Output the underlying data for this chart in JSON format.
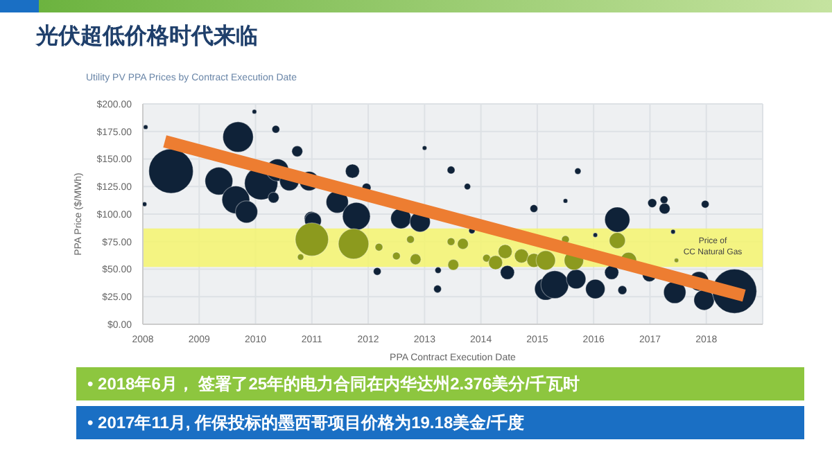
{
  "chart_data": {
    "type": "bubble",
    "title": "光伏超低价格时代来临",
    "subtitle": "Utility PV PPA Prices by Contract Execution Date",
    "xlabel": "PPA Contract Execution Date",
    "ylabel": "PPA Price ($/MWh)",
    "xlim": [
      2008,
      2019
    ],
    "xticks": [
      2008,
      2009,
      2010,
      2011,
      2012,
      2013,
      2014,
      2015,
      2016,
      2017,
      2018
    ],
    "ylim": [
      0,
      200
    ],
    "yticks": [
      {
        "value": 0,
        "label": "$0.00"
      },
      {
        "value": 25,
        "label": "$25.00"
      },
      {
        "value": 50,
        "label": "$50.00"
      },
      {
        "value": 75,
        "label": "$75.00"
      },
      {
        "value": 100,
        "label": "$100.00"
      },
      {
        "value": 125,
        "label": "$125.00"
      },
      {
        "value": 150,
        "label": "$150.00"
      },
      {
        "value": 175,
        "label": "$175.00"
      },
      {
        "value": 200,
        "label": "$200.00"
      }
    ],
    "grid": true,
    "bands": [
      {
        "axis": "y",
        "from": 52,
        "to": 87,
        "label": "Price of CC Natural Gas",
        "color": "#f5f56e"
      }
    ],
    "series": [
      {
        "type": "bubble",
        "color": "#0f2238",
        "x": [
          2008.5,
          2009.69,
          2009.35,
          2009.65,
          2009.84,
          2008.05,
          2008.03,
          2009.98,
          2010.36,
          2010.74,
          2010.1,
          2010.39,
          2010.6,
          2010.32,
          2010.95,
          2010.99,
          2011.72,
          2011.97,
          2011.45,
          2011.79,
          2011.02,
          2012.16,
          2012.58,
          2012.92,
          2013.0,
          2013.47,
          2013.76,
          2013.24,
          2013.23,
          2013.84,
          2014.47,
          2014.94,
          2015.15,
          2015.31,
          2015.72,
          2015.5,
          2015.69,
          2016.03,
          2016.32,
          2016.42,
          2016.51,
          2017.04,
          2017.26,
          2017.25,
          2017.41,
          2016.99,
          2017.44,
          2017.98,
          2017.87,
          2017.96,
          2018.5,
          2016.03
        ],
        "values": [
          139,
          170,
          130,
          113,
          102,
          179,
          109,
          193,
          177,
          157,
          128,
          140,
          130,
          115,
          130,
          96,
          139,
          124,
          111,
          98,
          94,
          48,
          96,
          93,
          160,
          140,
          125,
          49,
          32,
          85,
          47,
          105,
          32,
          36,
          139,
          112,
          41,
          32,
          47,
          95,
          31,
          110,
          105,
          113,
          84,
          45,
          29,
          109,
          39,
          22,
          30,
          81
        ],
        "sizes": [
          1,
          0.47,
          0.39,
          0.39,
          0.25,
          0.01,
          0.01,
          0.01,
          0.03,
          0.06,
          0.56,
          0.25,
          0.19,
          0.06,
          0.19,
          0.1,
          0.1,
          0.04,
          0.25,
          0.39,
          0.14,
          0.03,
          0.21,
          0.21,
          0.01,
          0.03,
          0.02,
          0.02,
          0.03,
          0.02,
          0.1,
          0.03,
          0.25,
          0.39,
          0.02,
          0.01,
          0.19,
          0.19,
          0.1,
          0.32,
          0.04,
          0.04,
          0.06,
          0.03,
          0.01,
          0.1,
          0.25,
          0.03,
          0.19,
          0.21,
          1,
          0.01
        ]
      },
      {
        "type": "bubble",
        "color": "#8c9a1e",
        "x": [
          2011,
          2010.8,
          2011.74,
          2012.19,
          2012.5,
          2012.84,
          2012.75,
          2013.47,
          2013.68,
          2013.51,
          2014.1,
          2014.43,
          2014.26,
          2014.72,
          2014.94,
          2015.5,
          2015.15,
          2015.65,
          2016.42,
          2016.62,
          2017.47
        ],
        "values": [
          77,
          61,
          73,
          70,
          62,
          59,
          77,
          75,
          73,
          54,
          60,
          66,
          56,
          62,
          58,
          77,
          58,
          58,
          76,
          58,
          58
        ],
        "sizes": [
          0.56,
          0.02,
          0.47,
          0.03,
          0.03,
          0.06,
          0.03,
          0.03,
          0.06,
          0.06,
          0.03,
          0.1,
          0.1,
          0.1,
          0.1,
          0.03,
          0.19,
          0.19,
          0.13,
          0.13,
          0.01
        ]
      },
      {
        "type": "line",
        "color": "#ed7d31",
        "x": [
          2008.39,
          2018.67
        ],
        "values": [
          166,
          26
        ]
      }
    ],
    "annotations": [
      "• 2018年6月， 签署了25年的电力合同在内华达州2.376美分/千瓦时",
      "• 2017年11月, 作保投标的墨西哥项目价格为19.18美金/千度"
    ]
  }
}
